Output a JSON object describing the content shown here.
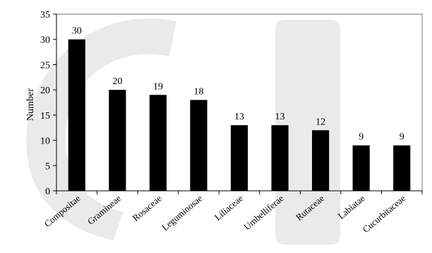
{
  "chart_data": {
    "type": "bar",
    "title": "",
    "xlabel": "",
    "ylabel": "Number",
    "categories": [
      "Compositae",
      "Gramineae",
      "Rosaceae",
      "Leguminosae",
      "Liliaceae",
      "Umbelliferae",
      "Rutaceae",
      "Labiatae",
      "Cucurbitaceae"
    ],
    "values": [
      30,
      20,
      19,
      18,
      13,
      13,
      12,
      9,
      9
    ],
    "ylim": [
      0,
      35
    ],
    "yticks": [
      0,
      5,
      10,
      15,
      20,
      25,
      30,
      35
    ],
    "grid": false,
    "legend": "none",
    "bar_color": "#000000",
    "watermark_color": "#d9d9d9"
  }
}
